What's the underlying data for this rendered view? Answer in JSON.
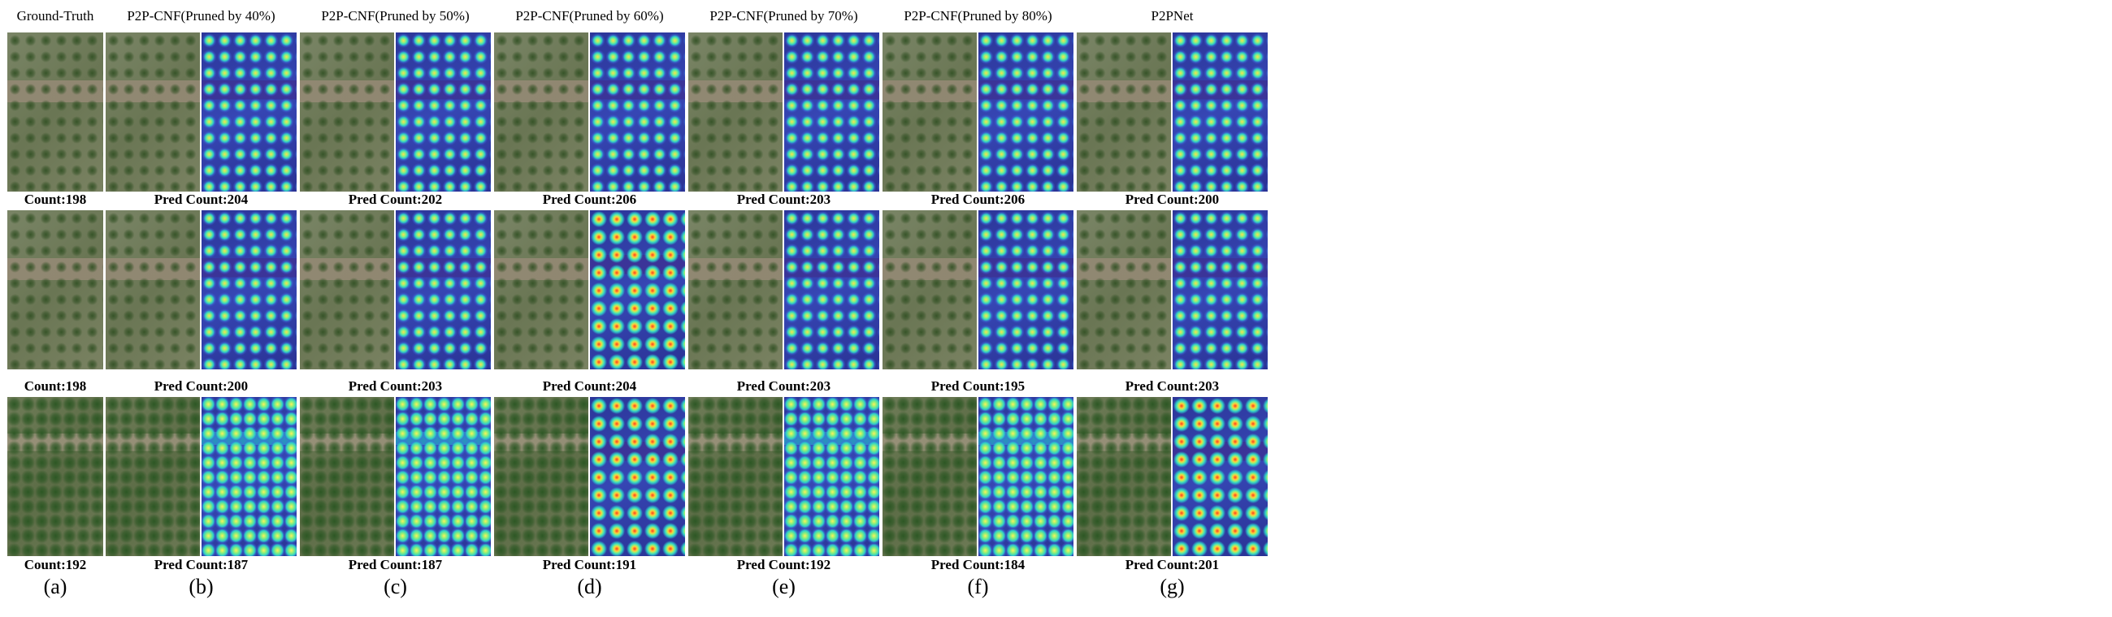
{
  "columns": [
    {
      "title": "Ground-Truth",
      "counts": [
        "Count:198",
        "Count:198",
        "Count:192"
      ],
      "label": "(a)",
      "heatmap": false
    },
    {
      "title": "P2P-CNF(Pruned by 40%)",
      "counts": [
        "Pred Count:204",
        "Pred Count:200",
        "Pred Count:187"
      ],
      "label": "(b)",
      "heatmap": true
    },
    {
      "title": "P2P-CNF(Pruned by 50%)",
      "counts": [
        "Pred Count:202",
        "Pred Count:203",
        "Pred Count:187"
      ],
      "label": "(c)",
      "heatmap": true
    },
    {
      "title": "P2P-CNF(Pruned by 60%)",
      "counts": [
        "Pred Count:206",
        "Pred Count:204",
        "Pred Count:191"
      ],
      "label": "(d)",
      "heatmap": true
    },
    {
      "title": "P2P-CNF(Pruned by 70%)",
      "counts": [
        "Pred Count:203",
        "Pred Count:203",
        "Pred Count:192"
      ],
      "label": "(e)",
      "heatmap": true
    },
    {
      "title": "P2P-CNF(Pruned by 80%)",
      "counts": [
        "Pred Count:206",
        "Pred Count:195",
        "Pred Count:184"
      ],
      "label": "(f)",
      "heatmap": true
    },
    {
      "title": "P2PNet",
      "counts": [
        "Pred Count:200",
        "Pred Count:203",
        "Pred Count:201"
      ],
      "label": "(g)",
      "heatmap": true
    }
  ],
  "colors": {
    "heatmap_background": "#2f3aa8",
    "heatmap_peak": "#ffe04a",
    "heatmap_hot": "#ff3a1a",
    "field_green": "#6f7a5a",
    "soil_path": "#968a76"
  }
}
